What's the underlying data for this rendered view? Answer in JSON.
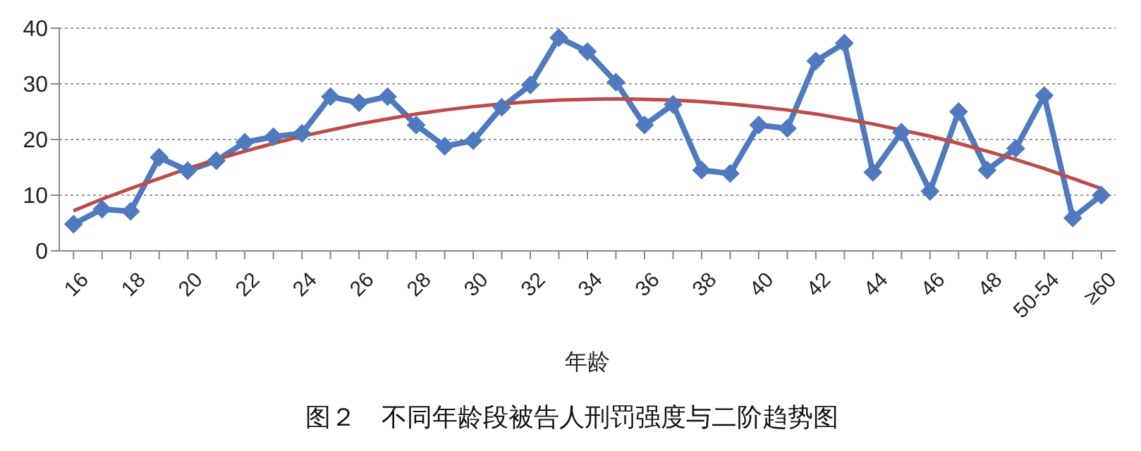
{
  "chart_data": {
    "type": "line",
    "title": "图２　不同年龄段被告人刑罚强度与二阶趋势图",
    "xlabel": "年龄",
    "categories": [
      "16",
      null,
      "18",
      null,
      "20",
      null,
      "22",
      null,
      "24",
      null,
      "26",
      null,
      "28",
      null,
      "30",
      null,
      "32",
      null,
      "34",
      null,
      "36",
      null,
      "38",
      null,
      "40",
      null,
      "42",
      null,
      "44",
      null,
      "46",
      null,
      "48",
      null,
      "50-54",
      null,
      "≥60"
    ],
    "series": [
      {
        "color": "#4f7ac0",
        "marker": "diamond",
        "values": [
          4.8,
          7.5,
          7.1,
          16.8,
          14.4,
          16.2,
          19.5,
          20.5,
          21.1,
          27.7,
          26.6,
          27.7,
          22.6,
          18.8,
          19.8,
          25.8,
          29.8,
          38.3,
          35.8,
          30.3,
          22.6,
          26.3,
          14.5,
          13.9,
          22.6,
          22,
          34.1,
          37.3,
          14.1,
          21.3,
          10.7,
          25,
          14.5,
          18.4,
          27.9,
          5.9,
          10
        ]
      },
      {
        "type": "line",
        "color": "#be4b48",
        "marker": "none",
        "values": [
          7.2,
          9.3,
          11.2,
          13,
          14.8,
          16.4,
          17.9,
          19.3,
          20.6,
          21.7,
          22.8,
          23.7,
          24.6,
          25.3,
          25.9,
          26.4,
          26.8,
          27.1,
          27.2,
          27.3,
          27.2,
          27.1,
          26.8,
          26.4,
          25.9,
          25.3,
          24.6,
          23.7,
          22.8,
          21.7,
          20.6,
          19.3,
          17.9,
          16.4,
          14.8,
          13,
          11.2
        ]
      }
    ],
    "ylim": [
      0,
      40
    ],
    "yticks": [
      0,
      10,
      20,
      30,
      40
    ],
    "grid": "y",
    "legend": false
  }
}
